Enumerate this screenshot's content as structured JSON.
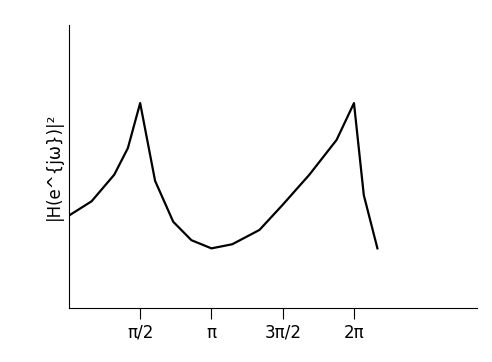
{
  "chart_data": {
    "type": "line",
    "y_label": "|H(e^{jω})|²",
    "x": [
      0,
      0.5,
      1.0,
      1.3,
      1.5708,
      1.9,
      2.3,
      2.7,
      3.1416,
      3.6,
      4.2,
      4.7,
      5.3,
      5.9,
      6.2832,
      6.5,
      6.8
    ],
    "values": [
      0.45,
      0.52,
      0.65,
      0.78,
      1.0,
      0.62,
      0.42,
      0.33,
      0.29,
      0.31,
      0.38,
      0.5,
      0.65,
      0.82,
      1.0,
      0.55,
      0.29
    ],
    "color": "#000000",
    "xlim": [
      0,
      9
    ],
    "ylim": [
      0,
      1.38
    ],
    "xticks": [
      {
        "value": 1.5708,
        "label": "π/2"
      },
      {
        "value": 3.1416,
        "label": "π"
      },
      {
        "value": 4.7124,
        "label": "3π/2"
      },
      {
        "value": 6.2832,
        "label": "2π"
      }
    ],
    "yticks": [],
    "tick_labels": "x",
    "grid": false
  }
}
